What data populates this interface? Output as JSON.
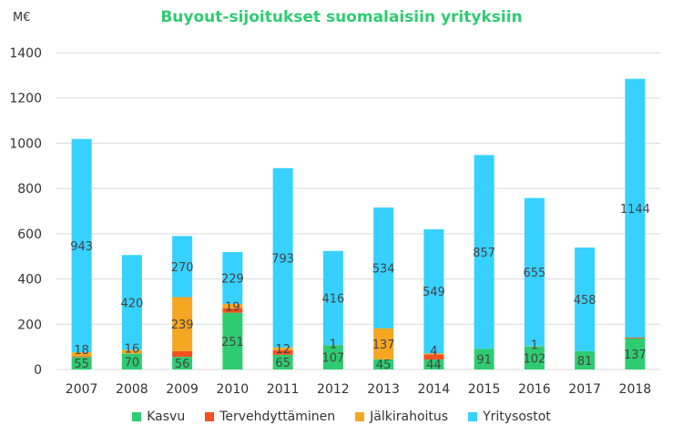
{
  "chart_data": {
    "type": "bar",
    "stacked": true,
    "title": "Buyout-sijoitukset suomalaisiin yrityksiin",
    "ylabel": "M€",
    "xlabel": "",
    "ylim": [
      0,
      1400
    ],
    "yticks": [
      0,
      200,
      400,
      600,
      800,
      1000,
      1200,
      1400
    ],
    "grid": true,
    "legend_position": "bottom",
    "categories": [
      "2007",
      "2008",
      "2009",
      "2010",
      "2011",
      "2012",
      "2013",
      "2014",
      "2015",
      "2016",
      "2017",
      "2018"
    ],
    "series": [
      {
        "name": "Kasvu",
        "color": "#2ecc71",
        "values": [
          55,
          70,
          56,
          251,
          65,
          107,
          45,
          44,
          91,
          102,
          81,
          137
        ],
        "labeled": [
          true,
          true,
          true,
          true,
          true,
          true,
          true,
          true,
          true,
          true,
          true,
          true
        ]
      },
      {
        "name": "Tervehdyttäminen",
        "color": "#f4511e",
        "values": [
          3,
          0,
          25,
          20,
          20,
          1,
          0,
          23,
          0,
          0,
          0,
          4
        ],
        "labeled": [
          false,
          false,
          false,
          false,
          false,
          true,
          false,
          false,
          false,
          false,
          false,
          false
        ]
      },
      {
        "name": "Jälkirahoitus",
        "color": "#f5a623",
        "values": [
          18,
          16,
          239,
          19,
          12,
          0,
          137,
          4,
          0,
          1,
          0,
          0
        ],
        "labeled": [
          true,
          true,
          true,
          true,
          true,
          false,
          true,
          true,
          false,
          true,
          false,
          false
        ]
      },
      {
        "name": "Yritysostot",
        "color": "#36d1ff",
        "values": [
          943,
          420,
          270,
          229,
          793,
          416,
          534,
          549,
          857,
          655,
          458,
          1144
        ],
        "labeled": [
          true,
          true,
          true,
          true,
          true,
          true,
          true,
          true,
          true,
          true,
          true,
          true
        ]
      }
    ]
  }
}
